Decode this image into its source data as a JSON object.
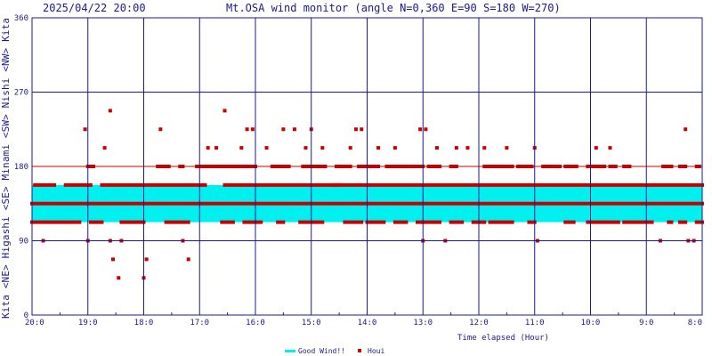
{
  "header": {
    "timestamp": "2025/04/22 20:00",
    "title": "Mt.OSA wind monitor (angle N=0,360 E=90 S=180 W=270)"
  },
  "chart_data": {
    "type": "scatter",
    "title": "Mt.OSA wind monitor (angle N=0,360 E=90 S=180 W=270)",
    "xlabel": "Time elapsed (Hour)",
    "ylabel": "Kita <NE> Higashi <SE> Minami <SW> Nishi <NW> Kita",
    "ylabel_words": [
      "Kita",
      "<NE>",
      "Higashi",
      "<SE>",
      "Minami",
      "<SW>",
      "Nishi",
      "<NW>",
      "Kita"
    ],
    "yticks": [
      0,
      90,
      180,
      270,
      360
    ],
    "ylim": [
      0,
      360
    ],
    "x_hours_ago_range": [
      0,
      12
    ],
    "x_ticks": [
      {
        "label": "20:0",
        "hours_ago": 0
      },
      {
        "label": "19:0",
        "hours_ago": 1
      },
      {
        "label": "18:0",
        "hours_ago": 2
      },
      {
        "label": "17:0",
        "hours_ago": 3
      },
      {
        "label": "16:0",
        "hours_ago": 4
      },
      {
        "label": "15:0",
        "hours_ago": 5
      },
      {
        "label": "14:0",
        "hours_ago": 6
      },
      {
        "label": "13:0",
        "hours_ago": 7
      },
      {
        "label": "12:0",
        "hours_ago": 8
      },
      {
        "label": "11:0",
        "hours_ago": 9
      },
      {
        "label": "10:0",
        "hours_ago": 10
      },
      {
        "label": "9:0",
        "hours_ago": 11
      },
      {
        "label": "8:0",
        "hours_ago": 12
      }
    ],
    "grid": true,
    "legend_position": "bottom-center",
    "colors": {
      "good_wind": "#00f0f0",
      "houi": "#c80000",
      "grid": "#1a1a8c",
      "ref_line": "#c80000"
    },
    "ref_line_deg": 180,
    "series": [
      {
        "name": "Good Wind!!",
        "kind": "band",
        "range_deg": [
          112.5,
          157.5
        ]
      },
      {
        "name": "Houi",
        "kind": "scatter",
        "points_hours_ago_deg": [
          [
            0.95,
            225
          ],
          [
            1.05,
            180
          ],
          [
            1.3,
            202.5
          ],
          [
            1.4,
            247.5
          ],
          [
            2.3,
            225
          ],
          [
            3.15,
            202.5
          ],
          [
            3.3,
            202.5
          ],
          [
            3.45,
            247.5
          ],
          [
            3.75,
            202.5
          ],
          [
            3.85,
            225
          ],
          [
            3.95,
            225
          ],
          [
            4.2,
            202.5
          ],
          [
            4.5,
            225
          ],
          [
            4.7,
            225
          ],
          [
            4.9,
            202.5
          ],
          [
            5.0,
            225
          ],
          [
            5.2,
            202.5
          ],
          [
            5.7,
            202.5
          ],
          [
            5.8,
            225
          ],
          [
            5.9,
            225
          ],
          [
            6.2,
            202.5
          ],
          [
            6.5,
            202.5
          ],
          [
            6.95,
            225
          ],
          [
            7.05,
            225
          ],
          [
            7.25,
            202.5
          ],
          [
            7.6,
            202.5
          ],
          [
            7.8,
            202.5
          ],
          [
            8.1,
            202.5
          ],
          [
            8.5,
            202.5
          ],
          [
            9.0,
            202.5
          ],
          [
            10.1,
            202.5
          ],
          [
            10.35,
            202.5
          ],
          [
            11.7,
            225
          ],
          [
            0.2,
            90
          ],
          [
            1.0,
            90
          ],
          [
            1.4,
            90
          ],
          [
            1.45,
            67.5
          ],
          [
            1.55,
            45
          ],
          [
            1.6,
            90
          ],
          [
            2.0,
            45
          ],
          [
            2.05,
            67.5
          ],
          [
            2.7,
            90
          ],
          [
            2.8,
            67.5
          ],
          [
            7.0,
            90
          ],
          [
            7.4,
            90
          ],
          [
            9.05,
            90
          ],
          [
            11.25,
            90
          ],
          [
            11.75,
            90
          ],
          [
            11.85,
            90
          ]
        ],
        "dense_rows": [
          {
            "deg": 180,
            "segments": [
              [
                1.0,
                1.1
              ],
              [
                2.25,
                2.45
              ],
              [
                2.65,
                2.7
              ],
              [
                2.95,
                4.0
              ],
              [
                4.3,
                4.6
              ],
              [
                4.85,
                5.25
              ],
              [
                5.45,
                5.7
              ],
              [
                5.85,
                6.2
              ],
              [
                6.35,
                7.0
              ],
              [
                7.1,
                7.3
              ],
              [
                7.5,
                7.6
              ],
              [
                8.1,
                8.6
              ],
              [
                8.7,
                8.95
              ],
              [
                9.15,
                9.45
              ],
              [
                9.55,
                9.75
              ],
              [
                9.95,
                10.25
              ],
              [
                10.35,
                10.45
              ],
              [
                10.6,
                10.7
              ],
              [
                11.3,
                11.45
              ],
              [
                11.6,
                11.7
              ],
              [
                11.9,
                11.95
              ]
            ]
          },
          {
            "deg": 157.5,
            "segments": [
              [
                0.05,
                0.4
              ],
              [
                0.6,
                1.05
              ],
              [
                1.25,
                3.1
              ],
              [
                3.45,
                12.0
              ]
            ]
          },
          {
            "deg": 135,
            "segments": [
              [
                0.0,
                12.0
              ]
            ]
          },
          {
            "deg": 112.5,
            "segments": [
              [
                0.0,
                0.55
              ],
              [
                0.6,
                0.85
              ],
              [
                1.05,
                1.25
              ],
              [
                1.6,
                2.0
              ],
              [
                2.4,
                2.8
              ],
              [
                3.4,
                3.6
              ],
              [
                3.8,
                4.1
              ],
              [
                4.4,
                4.5
              ],
              [
                4.8,
                5.2
              ],
              [
                5.6,
                5.9
              ],
              [
                6.0,
                6.3
              ],
              [
                6.5,
                6.7
              ],
              [
                6.9,
                7.0
              ],
              [
                7.0,
                7.3
              ],
              [
                7.5,
                7.7
              ],
              [
                7.9,
                8.1
              ],
              [
                8.2,
                8.6
              ],
              [
                8.9,
                9.0
              ],
              [
                9.55,
                9.7
              ],
              [
                9.95,
                10.5
              ],
              [
                10.6,
                11.1
              ],
              [
                11.4,
                11.45
              ],
              [
                11.6,
                11.7
              ],
              [
                11.9,
                12.0
              ]
            ]
          },
          {
            "deg": 157.5,
            "segments": [
              [
                5.4,
                5.5
              ]
            ]
          }
        ]
      }
    ]
  }
}
